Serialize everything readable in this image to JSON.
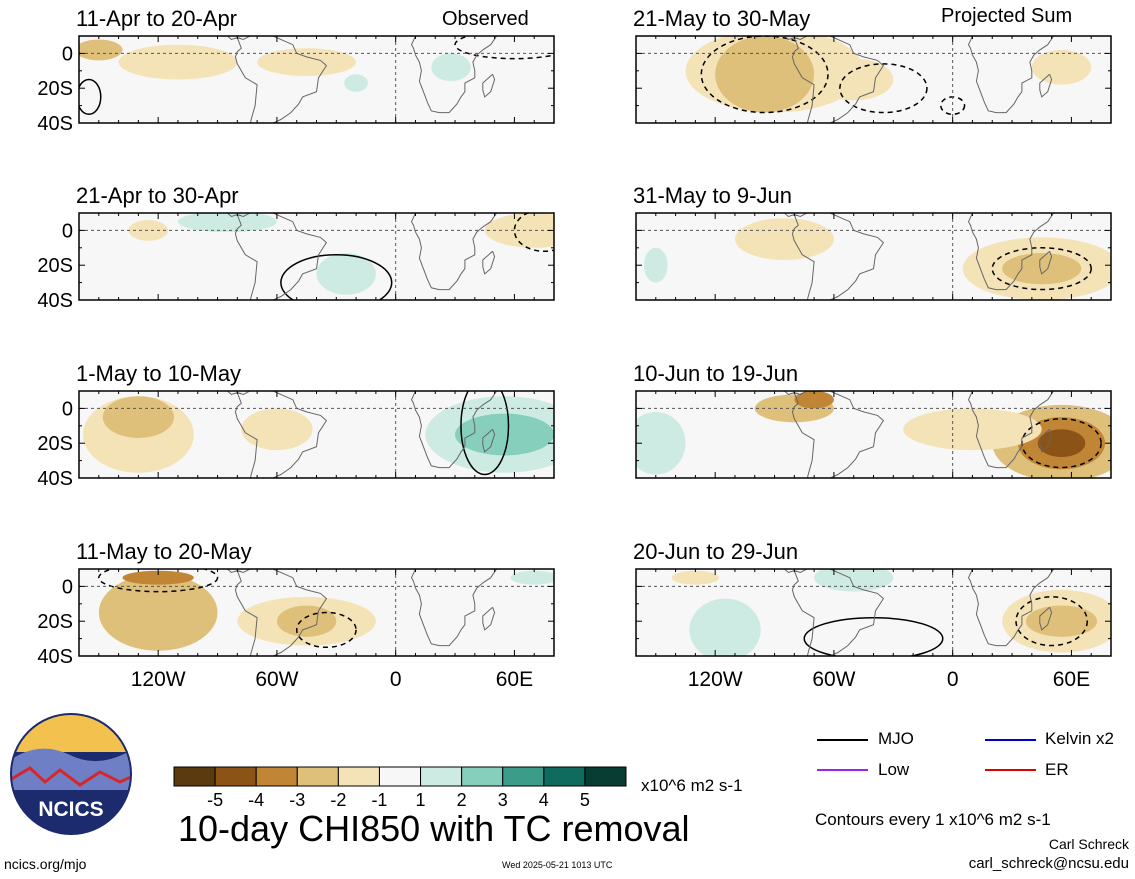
{
  "observed_label": "Observed",
  "projected_label": "Projected Sum",
  "y_tick_labels": [
    "0",
    "20S",
    "40S"
  ],
  "x_tick_labels": [
    "120W",
    "60W",
    "0",
    "60E"
  ],
  "legend": {
    "mjo": "MJO",
    "kelvin": "Kelvin x2",
    "low": "Low",
    "er": "ER",
    "colors": {
      "mjo": "#000000",
      "kelvin": "#0000cc",
      "low": "#a020f0",
      "er": "#e00000"
    }
  },
  "colorbar": {
    "labels": [
      "-5",
      "-4",
      "-3",
      "-2",
      "-1",
      "1",
      "2",
      "3",
      "4",
      "5"
    ],
    "units": "x10^6 m2 s-1",
    "colors": [
      "#5a3a0e",
      "#8c5316",
      "#c08635",
      "#dfc07a",
      "#f5e3b8",
      "#f7f7f7",
      "#cdebe3",
      "#86cfbc",
      "#3a9c89",
      "#0e6b5e",
      "#073d33"
    ]
  },
  "main_title": "10-day CHI850 with TC removal",
  "contour_note": "Contours every 1 x10^6 m2 s-1",
  "author": "Carl Schreck",
  "email": "carl_schreck@ncsu.edu",
  "site": "ncics.org/mjo",
  "timestamp": "Wed 2025-05-21 1013 UTC",
  "logo_text": "NCICS",
  "chart_data": [
    {
      "type": "heatmap",
      "title": "11-Apr to 20-Apr",
      "column": "Observed",
      "features": [
        {
          "lon": -150,
          "lat": 2,
          "rlon": 12,
          "rlat": 6,
          "level": -2
        },
        {
          "lon": -110,
          "lat": -5,
          "rlon": 30,
          "rlat": 10,
          "level": -1
        },
        {
          "lon": -45,
          "lat": -5,
          "rlon": 25,
          "rlat": 8,
          "level": -1
        },
        {
          "lon": 28,
          "lat": -8,
          "rlon": 10,
          "rlat": 8,
          "level": 1
        },
        {
          "lon": -20,
          "lat": -17,
          "rlon": 6,
          "rlat": 5,
          "level": 1
        }
      ],
      "contours": [
        {
          "lon": 60,
          "lat": 5,
          "rlon": 30,
          "rlat": 8,
          "level": -1
        },
        {
          "lon": -155,
          "lat": -25,
          "rlon": 6,
          "rlat": 10,
          "level": 1
        }
      ]
    },
    {
      "type": "heatmap",
      "title": "21-Apr to 30-Apr",
      "column": "Observed",
      "features": [
        {
          "lon": -85,
          "lat": 5,
          "rlon": 25,
          "rlat": 6,
          "level": 1
        },
        {
          "lon": -25,
          "lat": -25,
          "rlon": 15,
          "rlat": 12,
          "level": 1
        },
        {
          "lon": 70,
          "lat": 0,
          "rlon": 25,
          "rlat": 10,
          "level": -1
        },
        {
          "lon": -125,
          "lat": 0,
          "rlon": 10,
          "rlat": 6,
          "level": -1
        }
      ],
      "contours": [
        {
          "lon": -30,
          "lat": -30,
          "rlon": 28,
          "rlat": 16,
          "level": 1
        },
        {
          "lon": 75,
          "lat": 0,
          "rlon": 15,
          "rlat": 12,
          "level": -1
        }
      ]
    },
    {
      "type": "heatmap",
      "title": "1-May to 10-May",
      "column": "Observed",
      "features": [
        {
          "lon": -130,
          "lat": -15,
          "rlon": 28,
          "rlat": 22,
          "level": -1
        },
        {
          "lon": -130,
          "lat": -5,
          "rlon": 18,
          "rlat": 12,
          "level": -2
        },
        {
          "lon": -60,
          "lat": -12,
          "rlon": 18,
          "rlat": 12,
          "level": -1
        },
        {
          "lon": 55,
          "lat": -15,
          "rlon": 40,
          "rlat": 22,
          "level": 1
        },
        {
          "lon": 55,
          "lat": -15,
          "rlon": 25,
          "rlat": 12,
          "level": 2
        }
      ],
      "contours": [
        {
          "lon": 45,
          "lat": -10,
          "rlon": 12,
          "rlat": 28,
          "level": 1
        }
      ]
    },
    {
      "type": "heatmap",
      "title": "11-May to 20-May",
      "column": "Observed",
      "features": [
        {
          "lon": -120,
          "lat": -15,
          "rlon": 30,
          "rlat": 22,
          "level": -2
        },
        {
          "lon": -120,
          "lat": 5,
          "rlon": 18,
          "rlat": 4,
          "level": -3
        },
        {
          "lon": -45,
          "lat": -20,
          "rlon": 35,
          "rlat": 14,
          "level": -1
        },
        {
          "lon": -45,
          "lat": -20,
          "rlon": 15,
          "rlat": 9,
          "level": -2
        },
        {
          "lon": 70,
          "lat": 5,
          "rlon": 12,
          "rlat": 4,
          "level": 1
        }
      ],
      "contours": [
        {
          "lon": -35,
          "lat": -25,
          "rlon": 15,
          "rlat": 10,
          "level": -1
        },
        {
          "lon": -120,
          "lat": 5,
          "rlon": 30,
          "rlat": 8,
          "level": -1
        }
      ]
    },
    {
      "type": "heatmap",
      "title": "21-May to 30-May",
      "column": "Projected Sum",
      "features": [
        {
          "lon": -90,
          "lat": -10,
          "rlon": 45,
          "rlat": 24,
          "level": -1
        },
        {
          "lon": -95,
          "lat": -12,
          "rlon": 25,
          "rlat": 22,
          "level": -2
        },
        {
          "lon": 55,
          "lat": -8,
          "rlon": 15,
          "rlat": 10,
          "level": -1
        },
        {
          "lon": -50,
          "lat": -15,
          "rlon": 20,
          "rlat": 12,
          "level": -1
        }
      ],
      "contours": [
        {
          "lon": -95,
          "lat": -12,
          "rlon": 32,
          "rlat": 22,
          "level": -1
        },
        {
          "lon": -35,
          "lat": -20,
          "rlon": 22,
          "rlat": 14,
          "level": -1
        },
        {
          "lon": 0,
          "lat": -30,
          "rlon": 6,
          "rlat": 5,
          "level": -1
        }
      ]
    },
    {
      "type": "heatmap",
      "title": "31-May to 9-Jun",
      "column": "Projected Sum",
      "features": [
        {
          "lon": -85,
          "lat": -5,
          "rlon": 25,
          "rlat": 12,
          "level": -1
        },
        {
          "lon": 45,
          "lat": -22,
          "rlon": 40,
          "rlat": 18,
          "level": -1
        },
        {
          "lon": 45,
          "lat": -22,
          "rlon": 20,
          "rlat": 9,
          "level": -2
        },
        {
          "lon": -150,
          "lat": -20,
          "rlon": 6,
          "rlat": 10,
          "level": 1
        }
      ],
      "contours": [
        {
          "lon": 45,
          "lat": -22,
          "rlon": 25,
          "rlat": 12,
          "level": -1
        }
      ]
    },
    {
      "type": "heatmap",
      "title": "10-Jun to 19-Jun",
      "column": "Projected Sum",
      "features": [
        {
          "lon": -80,
          "lat": 0,
          "rlon": 20,
          "rlat": 8,
          "level": -2
        },
        {
          "lon": -70,
          "lat": 5,
          "rlon": 10,
          "rlat": 5,
          "level": -3
        },
        {
          "lon": 55,
          "lat": -20,
          "rlon": 35,
          "rlat": 22,
          "level": -2
        },
        {
          "lon": 55,
          "lat": -20,
          "rlon": 22,
          "rlat": 15,
          "level": -3
        },
        {
          "lon": 55,
          "lat": -20,
          "rlon": 12,
          "rlat": 8,
          "level": -4
        },
        {
          "lon": -150,
          "lat": -20,
          "rlon": 15,
          "rlat": 18,
          "level": 1
        },
        {
          "lon": 10,
          "lat": -12,
          "rlon": 35,
          "rlat": 12,
          "level": -1
        }
      ],
      "contours": [
        {
          "lon": 55,
          "lat": -20,
          "rlon": 20,
          "rlat": 14,
          "level": -1
        }
      ]
    },
    {
      "type": "heatmap",
      "title": "20-Jun to 29-Jun",
      "column": "Projected Sum",
      "features": [
        {
          "lon": -115,
          "lat": -25,
          "rlon": 18,
          "rlat": 18,
          "level": 1
        },
        {
          "lon": -50,
          "lat": 5,
          "rlon": 20,
          "rlat": 8,
          "level": 1
        },
        {
          "lon": 55,
          "lat": -20,
          "rlon": 30,
          "rlat": 18,
          "level": -1
        },
        {
          "lon": 55,
          "lat": -20,
          "rlon": 18,
          "rlat": 9,
          "level": -2
        },
        {
          "lon": -130,
          "lat": 5,
          "rlon": 12,
          "rlat": 4,
          "level": -1
        }
      ],
      "contours": [
        {
          "lon": -40,
          "lat": -30,
          "rlon": 35,
          "rlat": 12,
          "level": 1
        },
        {
          "lon": 50,
          "lat": -20,
          "rlon": 18,
          "rlat": 14,
          "level": -1
        }
      ]
    }
  ]
}
